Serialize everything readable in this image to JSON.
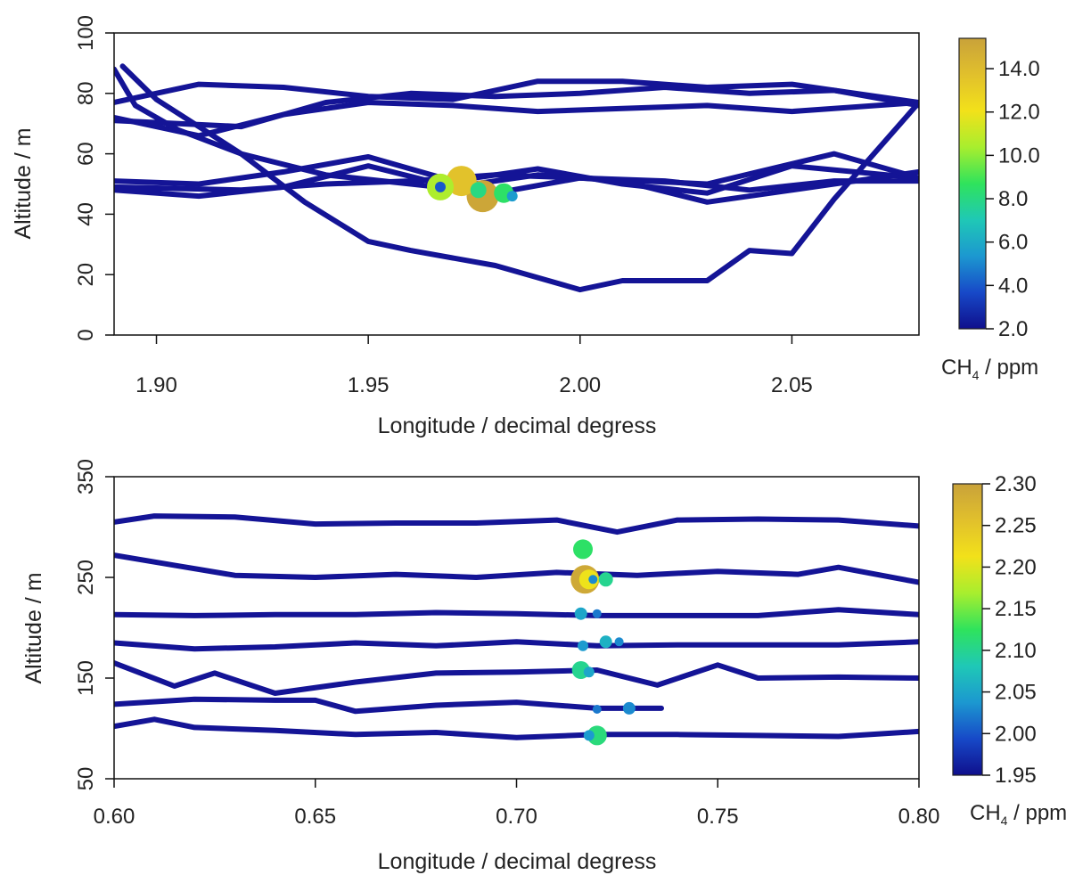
{
  "chart_data": [
    {
      "type": "scatter",
      "panel": "top",
      "xlabel": "Longitude / decimal degress",
      "ylabel": "Altitude / m",
      "xlim": [
        1.89,
        2.08
      ],
      "ylim": [
        0,
        100
      ],
      "xticks": [
        "1.90",
        "1.95",
        "2.00",
        "2.05"
      ],
      "yticks": [
        "0",
        "20",
        "40",
        "60",
        "80",
        "100"
      ],
      "colorbar": {
        "label_main": "CH",
        "label_sub": "4",
        "label_unit": " / ppm",
        "range": [
          2.0,
          15.4
        ],
        "ticks": [
          "2.0",
          "4.0",
          "6.0",
          "8.0",
          "10.0",
          "12.0",
          "14.0"
        ],
        "tick_values": [
          2.0,
          4.0,
          6.0,
          8.0,
          10.0,
          12.0,
          14.0
        ],
        "colors": [
          "#0f0f8c",
          "#1749c8",
          "#1c98d0",
          "#1fc8b6",
          "#2fe35c",
          "#a8ee2e",
          "#f2e11a",
          "#e1c02c",
          "#c9a23a"
        ]
      },
      "series": [
        {
          "x": [
            1.89,
            1.91,
            1.93,
            1.95,
            1.97,
            1.99,
            2.01,
            2.03,
            2.05,
            2.08
          ],
          "y": [
            77,
            83,
            82,
            79,
            78,
            84,
            84,
            82,
            83,
            77
          ]
        },
        {
          "x": [
            1.89,
            1.92,
            1.94,
            1.96,
            1.98,
            2.0,
            2.02,
            2.04,
            2.06,
            2.08
          ],
          "y": [
            71,
            69,
            77,
            80,
            79,
            80,
            82,
            80,
            81,
            76
          ]
        },
        {
          "x": [
            1.89,
            1.91,
            1.93,
            1.95,
            1.97,
            1.99,
            2.01,
            2.03,
            2.05,
            2.08
          ],
          "y": [
            72,
            66,
            73,
            77,
            76,
            74,
            75,
            76,
            74,
            77
          ]
        },
        {
          "x": [
            1.89,
            1.91,
            1.93,
            1.95,
            1.97,
            1.99,
            2.01,
            2.03,
            2.05,
            2.08
          ],
          "y": [
            51,
            50,
            54,
            59,
            51,
            55,
            50,
            47,
            56,
            52
          ]
        },
        {
          "x": [
            1.89,
            1.91,
            1.93,
            1.95,
            1.97,
            1.99,
            2.01,
            2.03,
            2.05,
            2.08
          ],
          "y": [
            48,
            46,
            49,
            56,
            49,
            53,
            51,
            44,
            48,
            54
          ]
        },
        {
          "x": [
            1.89,
            1.92,
            1.94,
            1.96,
            1.98,
            2.0,
            2.02,
            2.04,
            2.06,
            2.08
          ],
          "y": [
            49,
            48,
            50,
            51,
            53,
            52,
            51,
            48,
            51,
            51
          ]
        },
        {
          "x": [
            1.892,
            1.9,
            1.92,
            1.935,
            1.95,
            1.96,
            1.98,
            2.0,
            2.01,
            2.03,
            2.04,
            2.05,
            2.06,
            2.08
          ],
          "y": [
            89,
            78,
            60,
            44,
            31,
            28,
            23,
            15,
            18,
            18,
            28,
            27,
            45,
            77
          ]
        },
        {
          "x": [
            1.89,
            1.895,
            1.905,
            1.92,
            1.94,
            1.96,
            1.98,
            2.0,
            2.03,
            2.06,
            2.08
          ],
          "y": [
            88,
            76,
            68,
            60,
            53,
            50,
            47,
            52,
            50,
            60,
            52
          ]
        }
      ],
      "highlights": [
        {
          "x": 1.967,
          "y": 49,
          "value": 10.5,
          "r": 15
        },
        {
          "x": 1.972,
          "y": 51,
          "value": 13.6,
          "r": 17
        },
        {
          "x": 1.977,
          "y": 46,
          "value": 15.2,
          "r": 18
        },
        {
          "x": 1.976,
          "y": 48,
          "value": 8.0,
          "r": 9
        },
        {
          "x": 1.982,
          "y": 47,
          "value": 8.5,
          "r": 11
        },
        {
          "x": 1.984,
          "y": 46,
          "value": 5.5,
          "r": 6
        },
        {
          "x": 1.967,
          "y": 49,
          "value": 4.0,
          "r": 6
        }
      ]
    },
    {
      "type": "scatter",
      "panel": "bottom",
      "xlabel": "Longitude / decimal degress",
      "ylabel": "Altitude / m",
      "xlim": [
        0.6,
        0.8
      ],
      "ylim": [
        50,
        350
      ],
      "xticks": [
        "0.60",
        "0.65",
        "0.70",
        "0.75",
        "0.80"
      ],
      "yticks": [
        "50",
        "150",
        "250",
        "350"
      ],
      "colorbar": {
        "label_main": "CH",
        "label_sub": "4",
        "label_unit": " / ppm",
        "range": [
          1.95,
          2.3
        ],
        "ticks": [
          "1.95",
          "2.00",
          "2.05",
          "2.10",
          "2.15",
          "2.20",
          "2.25",
          "2.30"
        ],
        "tick_values": [
          1.95,
          2.0,
          2.05,
          2.1,
          2.15,
          2.2,
          2.25,
          2.3
        ],
        "colors": [
          "#0f0f8c",
          "#1749c8",
          "#1c98d0",
          "#1fc8b6",
          "#2fe35c",
          "#a8ee2e",
          "#f2e11a",
          "#e1c02c",
          "#c9a23a"
        ]
      },
      "series": [
        {
          "x": [
            0.6,
            0.61,
            0.63,
            0.65,
            0.67,
            0.69,
            0.71,
            0.725,
            0.74,
            0.76,
            0.78,
            0.8
          ],
          "y": [
            305,
            311,
            310,
            303,
            304,
            304,
            307,
            295,
            307,
            308,
            307,
            301
          ]
        },
        {
          "x": [
            0.6,
            0.615,
            0.63,
            0.65,
            0.67,
            0.69,
            0.71,
            0.73,
            0.75,
            0.77,
            0.78,
            0.8
          ],
          "y": [
            272,
            262,
            252,
            250,
            253,
            250,
            255,
            252,
            256,
            253,
            260,
            245
          ]
        },
        {
          "x": [
            0.6,
            0.62,
            0.64,
            0.66,
            0.68,
            0.7,
            0.72,
            0.74,
            0.76,
            0.78,
            0.8
          ],
          "y": [
            213,
            212,
            213,
            213,
            215,
            214,
            212,
            212,
            212,
            218,
            213
          ]
        },
        {
          "x": [
            0.6,
            0.62,
            0.64,
            0.66,
            0.68,
            0.7,
            0.72,
            0.74,
            0.76,
            0.78,
            0.8
          ],
          "y": [
            185,
            179,
            181,
            185,
            182,
            186,
            182,
            183,
            183,
            183,
            186
          ]
        },
        {
          "x": [
            0.6,
            0.615,
            0.625,
            0.64,
            0.66,
            0.68,
            0.7,
            0.72,
            0.735,
            0.75,
            0.76,
            0.78,
            0.8
          ],
          "y": [
            165,
            142,
            155,
            135,
            146,
            155,
            156,
            158,
            143,
            163,
            150,
            151,
            150
          ]
        },
        {
          "x": [
            0.6,
            0.62,
            0.64,
            0.65,
            0.66,
            0.68,
            0.7,
            0.72,
            0.736
          ],
          "y": [
            124,
            129,
            128,
            128,
            117,
            123,
            126,
            120,
            120
          ]
        },
        {
          "x": [
            0.6,
            0.61,
            0.62,
            0.64,
            0.66,
            0.68,
            0.7,
            0.72,
            0.74,
            0.76,
            0.78,
            0.8
          ],
          "y": [
            102,
            109,
            101,
            98,
            94,
            96,
            91,
            94,
            94,
            93,
            92,
            97
          ]
        }
      ],
      "highlights": [
        {
          "x": 0.7165,
          "y": 278,
          "value": 2.12,
          "r": 11
        },
        {
          "x": 0.717,
          "y": 248,
          "value": 2.29,
          "r": 16
        },
        {
          "x": 0.718,
          "y": 248,
          "value": 2.21,
          "r": 11
        },
        {
          "x": 0.7222,
          "y": 248,
          "value": 2.1,
          "r": 8
        },
        {
          "x": 0.719,
          "y": 248,
          "value": 2.03,
          "r": 5
        },
        {
          "x": 0.716,
          "y": 214,
          "value": 2.05,
          "r": 7
        },
        {
          "x": 0.72,
          "y": 214,
          "value": 2.02,
          "r": 5
        },
        {
          "x": 0.7165,
          "y": 182,
          "value": 2.04,
          "r": 6
        },
        {
          "x": 0.7222,
          "y": 186,
          "value": 2.06,
          "r": 7
        },
        {
          "x": 0.7255,
          "y": 186,
          "value": 2.03,
          "r": 5
        },
        {
          "x": 0.716,
          "y": 158,
          "value": 2.1,
          "r": 10
        },
        {
          "x": 0.718,
          "y": 156,
          "value": 2.05,
          "r": 6
        },
        {
          "x": 0.72,
          "y": 119,
          "value": 2.02,
          "r": 5
        },
        {
          "x": 0.728,
          "y": 120,
          "value": 2.03,
          "r": 7
        },
        {
          "x": 0.72,
          "y": 93,
          "value": 2.11,
          "r": 11
        },
        {
          "x": 0.718,
          "y": 93,
          "value": 2.04,
          "r": 6
        }
      ]
    }
  ]
}
